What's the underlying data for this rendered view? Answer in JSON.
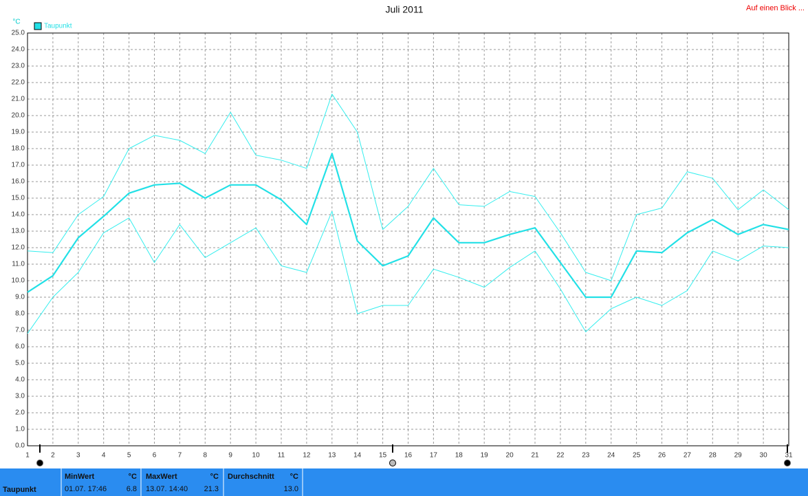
{
  "chart_data": {
    "type": "line",
    "title": "Juli 2011",
    "y_label": "°C",
    "link": "Auf einen Blick ...",
    "xlim": [
      1,
      31
    ],
    "xticks": [
      1,
      2,
      3,
      4,
      5,
      6,
      7,
      8,
      9,
      10,
      11,
      12,
      13,
      14,
      15,
      16,
      17,
      18,
      19,
      20,
      21,
      22,
      23,
      24,
      25,
      26,
      27,
      28,
      29,
      30,
      31
    ],
    "ylim": [
      0,
      25
    ],
    "yticks": [
      {
        "value": 0,
        "label": "0.0"
      },
      {
        "value": 1,
        "label": "1.0"
      },
      {
        "value": 2,
        "label": "2.0"
      },
      {
        "value": 3,
        "label": "3.0"
      },
      {
        "value": 4,
        "label": "4.0"
      },
      {
        "value": 5,
        "label": "5.0"
      },
      {
        "value": 6,
        "label": "6.0"
      },
      {
        "value": 7,
        "label": "7.0"
      },
      {
        "value": 8,
        "label": "8.0"
      },
      {
        "value": 9,
        "label": "9.0"
      },
      {
        "value": 10,
        "label": "10.0"
      },
      {
        "value": 11,
        "label": "11.0"
      },
      {
        "value": 12,
        "label": "12.0"
      },
      {
        "value": 13,
        "label": "13.0"
      },
      {
        "value": 14,
        "label": "14.0"
      },
      {
        "value": 15,
        "label": "15.0"
      },
      {
        "value": 16,
        "label": "16.0"
      },
      {
        "value": 17,
        "label": "17.0"
      },
      {
        "value": 18,
        "label": "18.0"
      },
      {
        "value": 19,
        "label": "19.0"
      },
      {
        "value": 20,
        "label": "20.0"
      },
      {
        "value": 21,
        "label": "21.0"
      },
      {
        "value": 22,
        "label": "22.0"
      },
      {
        "value": 23,
        "label": "23.0"
      },
      {
        "value": 24,
        "label": "24.0"
      },
      {
        "value": 25,
        "label": "25.0"
      }
    ],
    "grid": true,
    "x": [
      1,
      2,
      3,
      4,
      5,
      6,
      7,
      8,
      9,
      10,
      11,
      12,
      13,
      14,
      15,
      16,
      17,
      18,
      19,
      20,
      21,
      22,
      23,
      24,
      25,
      26,
      27,
      28,
      29,
      30,
      31
    ],
    "series": [
      {
        "color": "#33eeee",
        "values": [
          11.8,
          11.7,
          14.0,
          15.1,
          18.0,
          18.8,
          18.5,
          17.7,
          20.2,
          17.6,
          17.3,
          16.8,
          21.3,
          19.0,
          13.1,
          14.5,
          16.8,
          14.6,
          14.5,
          15.4,
          15.1,
          12.9,
          10.5,
          10.0,
          14.0,
          14.4,
          16.6,
          16.2,
          14.3,
          15.5,
          14.3
        ]
      },
      {
        "name": "Taupunkt",
        "color": "#22e0e6",
        "values": [
          9.3,
          10.3,
          12.6,
          13.9,
          15.3,
          15.8,
          15.9,
          15.0,
          15.8,
          15.8,
          14.9,
          13.4,
          17.7,
          12.4,
          10.9,
          11.5,
          13.8,
          12.3,
          12.3,
          12.8,
          13.2,
          11.1,
          9.0,
          9.0,
          11.8,
          11.7,
          12.9,
          13.7,
          12.8,
          13.4,
          13.1
        ]
      },
      {
        "color": "#33eeee",
        "values": [
          6.8,
          9.0,
          10.5,
          12.9,
          13.8,
          11.1,
          13.4,
          11.4,
          12.3,
          13.2,
          10.9,
          10.5,
          14.2,
          8.0,
          8.5,
          8.5,
          10.7,
          10.2,
          9.6,
          10.8,
          11.8,
          9.5,
          6.9,
          8.3,
          9.0,
          8.5,
          9.4,
          11.8,
          11.2,
          12.1,
          12.0
        ]
      }
    ]
  },
  "summary": {
    "label": "Taupunkt",
    "min": {
      "header": "MinWert",
      "unit": "°C",
      "time": "01.07. 17:46",
      "value": "6.8"
    },
    "max": {
      "header": "MaxWert",
      "unit": "°C",
      "time": "13.07. 14:40",
      "value": "21.3"
    },
    "avg": {
      "header": "Durchschnitt",
      "unit": "°C",
      "value": "13.0"
    }
  }
}
